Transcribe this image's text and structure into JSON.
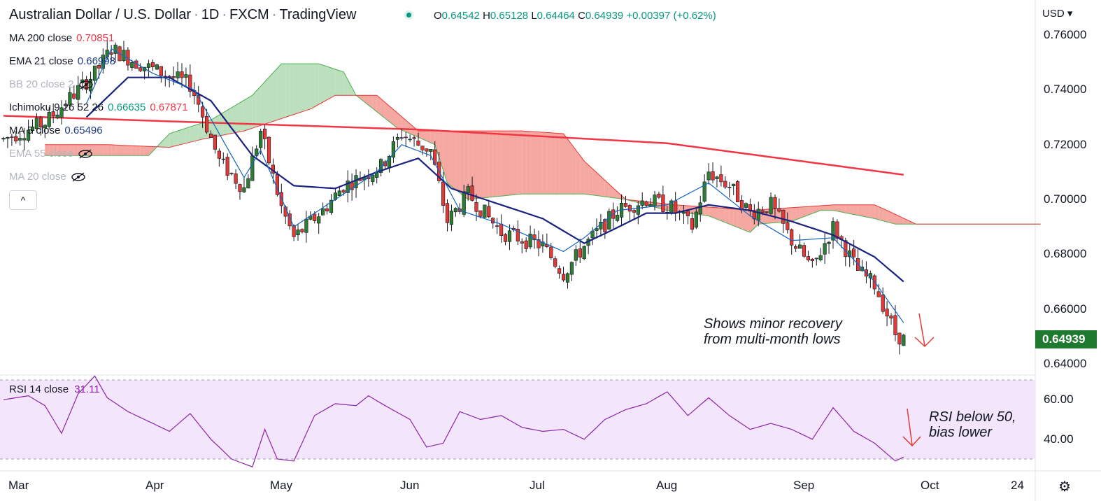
{
  "header": {
    "symbol": "Australian Dollar / U.S. Dollar",
    "interval": "1D",
    "exchange": "FXCM",
    "platform": "TradingView",
    "ohlc": {
      "o_label": "O",
      "o": "0.64542",
      "h_label": "H",
      "h": "0.65128",
      "l_label": "L",
      "l": "0.64464",
      "c_label": "C",
      "c": "0.64939",
      "change": "+0.00397",
      "change_pct": "(+0.62%)"
    },
    "separator": "·"
  },
  "legend": {
    "ma200": {
      "label": "MA 200 close",
      "value": "0.70851",
      "color": "#f23645"
    },
    "ema21": {
      "label": "EMA 21 close",
      "value": "0.66998",
      "color": "#1e3a8a"
    },
    "bb": {
      "label": "BB 20 close 2"
    },
    "ichimoku": {
      "label": "Ichimoku 9 26 52 26",
      "value1": "0.66635",
      "value2": "0.67871",
      "color1": "#089981",
      "color2": "#f23645"
    },
    "ma5": {
      "label": "MA 5 close",
      "value": "0.65496",
      "color": "#1e3a8a"
    },
    "ema55": {
      "label": "EMA 55 close"
    },
    "ma20": {
      "label": "MA 20 close"
    },
    "collapse": "^"
  },
  "price_axis": {
    "currency": "USD",
    "ticks": [
      "0.76000",
      "0.74000",
      "0.72000",
      "0.70000",
      "0.68000",
      "0.66000",
      "0.64000"
    ],
    "last_price": "0.64939",
    "last_price_color": "#1e7a2e"
  },
  "rsi": {
    "label": "RSI 14 close",
    "value": "31.11",
    "ticks": [
      "60.00",
      "40.00"
    ],
    "color": "#8e24aa"
  },
  "time_axis": {
    "labels": [
      "Mar",
      "Apr",
      "May",
      "Jun",
      "Jul",
      "Aug",
      "Sep",
      "Oct",
      "24"
    ]
  },
  "annotations": {
    "price_note_line1": "Shows minor recovery",
    "price_note_line2": "from multi-month lows",
    "rsi_note_line1": "RSI below 50,",
    "rsi_note_line2": "bias lower"
  },
  "colors": {
    "up": "#2e7d32",
    "down": "#e53935",
    "cloud_bull": "#a5d6a7",
    "cloud_bear": "#f28b82",
    "ma200": "#f23645",
    "ema21": "#1a237e",
    "ma5": "#1565c0",
    "rsi_band": "#f3e5fb"
  },
  "chart_data": {
    "type": "candlestick",
    "title": "Australian Dollar / U.S. Dollar · 1D · FXCM",
    "price_range": [
      0.637,
      0.7655
    ],
    "rsi_range": [
      20,
      75
    ],
    "price_path_anchors": [
      [
        0,
        0.722
      ],
      [
        10,
        0.728
      ],
      [
        22,
        0.746
      ],
      [
        26,
        0.755
      ],
      [
        32,
        0.75
      ],
      [
        40,
        0.745
      ],
      [
        45,
        0.742
      ],
      [
        47,
        0.735
      ],
      [
        52,
        0.714
      ],
      [
        58,
        0.704
      ],
      [
        62,
        0.725
      ],
      [
        67,
        0.697
      ],
      [
        70,
        0.686
      ],
      [
        77,
        0.696
      ],
      [
        82,
        0.705
      ],
      [
        86,
        0.708
      ],
      [
        91,
        0.712
      ],
      [
        96,
        0.724
      ],
      [
        100,
        0.72
      ],
      [
        103,
        0.718
      ],
      [
        107,
        0.692
      ],
      [
        112,
        0.702
      ],
      [
        120,
        0.688
      ],
      [
        130,
        0.683
      ],
      [
        135,
        0.673
      ],
      [
        140,
        0.683
      ],
      [
        148,
        0.696
      ],
      [
        155,
        0.7
      ],
      [
        161,
        0.697
      ],
      [
        166,
        0.69
      ],
      [
        170,
        0.71
      ],
      [
        175,
        0.705
      ],
      [
        180,
        0.695
      ],
      [
        185,
        0.698
      ],
      [
        190,
        0.685
      ],
      [
        195,
        0.675
      ],
      [
        200,
        0.69
      ],
      [
        206,
        0.674
      ],
      [
        210,
        0.669
      ],
      [
        215,
        0.651
      ],
      [
        217,
        0.649
      ]
    ],
    "ma200_anchors": [
      [
        0,
        0.7305
      ],
      [
        100,
        0.7255
      ],
      [
        160,
        0.7205
      ],
      [
        217,
        0.709
      ]
    ],
    "ema21_anchors": [
      [
        20,
        0.73
      ],
      [
        30,
        0.7445
      ],
      [
        40,
        0.7445
      ],
      [
        50,
        0.736
      ],
      [
        60,
        0.716
      ],
      [
        70,
        0.705
      ],
      [
        80,
        0.704
      ],
      [
        90,
        0.71
      ],
      [
        100,
        0.715
      ],
      [
        108,
        0.704
      ],
      [
        120,
        0.698
      ],
      [
        130,
        0.693
      ],
      [
        140,
        0.684
      ],
      [
        147,
        0.689
      ],
      [
        155,
        0.695
      ],
      [
        162,
        0.695
      ],
      [
        170,
        0.698
      ],
      [
        180,
        0.696
      ],
      [
        190,
        0.692
      ],
      [
        200,
        0.687
      ],
      [
        210,
        0.679
      ],
      [
        217,
        0.67
      ]
    ],
    "ma5_anchors": [
      [
        20,
        0.735
      ],
      [
        26,
        0.755
      ],
      [
        36,
        0.746
      ],
      [
        46,
        0.74
      ],
      [
        52,
        0.724
      ],
      [
        58,
        0.708
      ],
      [
        62,
        0.718
      ],
      [
        70,
        0.69
      ],
      [
        80,
        0.7
      ],
      [
        90,
        0.71
      ],
      [
        96,
        0.72
      ],
      [
        103,
        0.716
      ],
      [
        110,
        0.696
      ],
      [
        120,
        0.691
      ],
      [
        135,
        0.681
      ],
      [
        140,
        0.686
      ],
      [
        148,
        0.696
      ],
      [
        160,
        0.698
      ],
      [
        170,
        0.706
      ],
      [
        180,
        0.694
      ],
      [
        190,
        0.685
      ],
      [
        200,
        0.686
      ],
      [
        210,
        0.67
      ],
      [
        217,
        0.655
      ]
    ],
    "cloud_span_a": [
      [
        10,
        0.716
      ],
      [
        35,
        0.716
      ],
      [
        40,
        0.724
      ],
      [
        50,
        0.729
      ],
      [
        60,
        0.738
      ],
      [
        67,
        0.7495
      ],
      [
        76,
        0.7495
      ],
      [
        82,
        0.7465
      ],
      [
        85,
        0.738
      ],
      [
        95,
        0.726
      ],
      [
        104,
        0.72
      ],
      [
        107,
        0.706
      ],
      [
        112,
        0.7
      ],
      [
        125,
        0.702
      ],
      [
        140,
        0.702
      ],
      [
        150,
        0.7
      ],
      [
        160,
        0.696
      ],
      [
        170,
        0.694
      ],
      [
        180,
        0.688
      ],
      [
        182,
        0.691
      ],
      [
        190,
        0.692
      ],
      [
        197,
        0.696
      ],
      [
        200,
        0.696
      ],
      [
        210,
        0.693
      ],
      [
        215,
        0.691
      ]
    ],
    "cloud_span_b": [
      [
        10,
        0.72
      ],
      [
        25,
        0.72
      ],
      [
        40,
        0.719
      ],
      [
        48,
        0.722
      ],
      [
        58,
        0.725
      ],
      [
        74,
        0.733
      ],
      [
        80,
        0.738
      ],
      [
        85,
        0.738
      ],
      [
        90,
        0.738
      ],
      [
        100,
        0.725
      ],
      [
        125,
        0.725
      ],
      [
        135,
        0.724
      ],
      [
        140,
        0.714
      ],
      [
        150,
        0.7
      ],
      [
        162,
        0.698
      ],
      [
        172,
        0.697
      ],
      [
        180,
        0.696
      ],
      [
        190,
        0.697
      ],
      [
        200,
        0.698
      ],
      [
        210,
        0.698
      ],
      [
        213,
        0.696
      ],
      [
        220,
        0.691
      ]
    ],
    "rsi_anchors": [
      [
        0,
        60
      ],
      [
        6,
        62
      ],
      [
        10,
        57
      ],
      [
        14,
        43
      ],
      [
        18,
        63
      ],
      [
        22,
        72
      ],
      [
        25,
        61
      ],
      [
        30,
        54
      ],
      [
        36,
        48
      ],
      [
        40,
        44
      ],
      [
        45,
        53
      ],
      [
        50,
        40
      ],
      [
        55,
        30
      ],
      [
        60,
        26
      ],
      [
        63,
        45
      ],
      [
        66,
        30
      ],
      [
        70,
        29
      ],
      [
        75,
        52
      ],
      [
        80,
        58
      ],
      [
        85,
        57
      ],
      [
        88,
        62
      ],
      [
        92,
        57
      ],
      [
        98,
        50
      ],
      [
        102,
        36
      ],
      [
        106,
        38
      ],
      [
        110,
        54
      ],
      [
        115,
        50
      ],
      [
        120,
        52
      ],
      [
        125,
        46
      ],
      [
        130,
        44
      ],
      [
        135,
        45
      ],
      [
        140,
        40
      ],
      [
        145,
        50
      ],
      [
        150,
        55
      ],
      [
        155,
        58
      ],
      [
        160,
        64
      ],
      [
        165,
        52
      ],
      [
        170,
        61
      ],
      [
        175,
        52
      ],
      [
        180,
        45
      ],
      [
        185,
        48
      ],
      [
        190,
        45
      ],
      [
        195,
        40
      ],
      [
        200,
        56
      ],
      [
        205,
        44
      ],
      [
        210,
        38
      ],
      [
        215,
        29
      ],
      [
        217,
        31
      ]
    ]
  }
}
